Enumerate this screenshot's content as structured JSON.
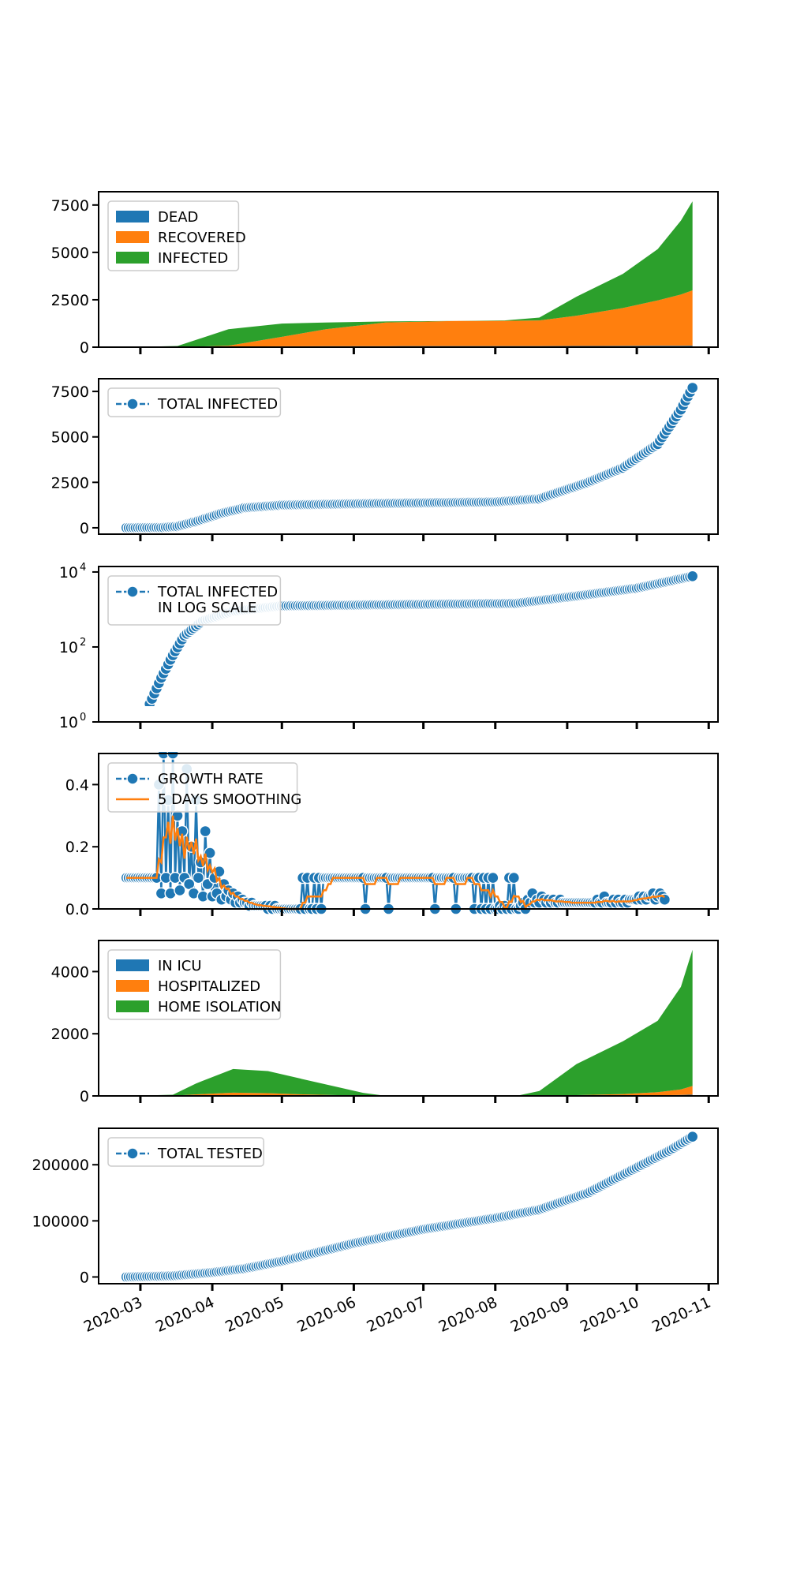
{
  "colors": {
    "blue": "#1f77b4",
    "orange": "#ff7f0e",
    "green": "#2ca02c",
    "axis": "#000000"
  },
  "chart_data": [
    {
      "type": "area",
      "stacked": true,
      "x": [
        "2020-02-24",
        "2020-03-17",
        "2020-04-08",
        "2020-05-01",
        "2020-05-20",
        "2020-06-15",
        "2020-07-15",
        "2020-08-05",
        "2020-08-20",
        "2020-09-05",
        "2020-09-25",
        "2020-10-10",
        "2020-10-20",
        "2020-10-25"
      ],
      "series": [
        {
          "name": "DEAD",
          "color": "#1f77b4",
          "values": [
            0,
            2,
            30,
            45,
            50,
            55,
            60,
            60,
            60,
            62,
            66,
            70,
            75,
            78
          ]
        },
        {
          "name": "RECOVERED",
          "color": "#ff7f0e",
          "values": [
            0,
            0,
            50,
            500,
            900,
            1250,
            1320,
            1330,
            1350,
            1600,
            2000,
            2400,
            2700,
            2920
          ]
        },
        {
          "name": "INFECTED",
          "color": "#2ca02c",
          "values": [
            0,
            60,
            870,
            700,
            350,
            50,
            5,
            20,
            150,
            1000,
            1800,
            2700,
            3900,
            4700
          ]
        }
      ],
      "yticks": [
        "0",
        "2500",
        "5000",
        "7500"
      ],
      "ylim": [
        0,
        8200
      ],
      "legend": "upper-left"
    },
    {
      "type": "line",
      "marker": "circle",
      "series": [
        {
          "name": "TOTAL INFECTED",
          "color": "#1f77b4"
        }
      ],
      "points": [
        [
          "2020-02-24",
          1
        ],
        [
          "2020-03-10",
          10
        ],
        [
          "2020-03-17",
          80
        ],
        [
          "2020-03-25",
          350
        ],
        [
          "2020-04-05",
          800
        ],
        [
          "2020-04-15",
          1100
        ],
        [
          "2020-05-01",
          1250
        ],
        [
          "2020-06-01",
          1320
        ],
        [
          "2020-07-01",
          1370
        ],
        [
          "2020-08-01",
          1420
        ],
        [
          "2020-08-20",
          1600
        ],
        [
          "2020-09-10",
          2500
        ],
        [
          "2020-09-25",
          3300
        ],
        [
          "2020-10-10",
          4600
        ],
        [
          "2020-10-20",
          6500
        ],
        [
          "2020-10-25",
          7700
        ]
      ],
      "yticks": [
        "0",
        "2500",
        "5000",
        "7500"
      ],
      "ylim": [
        -350,
        8200
      ],
      "legend": "upper-left"
    },
    {
      "type": "line",
      "marker": "circle",
      "yscale": "log",
      "series": [
        {
          "name_lines": [
            "TOTAL INFECTED",
            "IN LOG SCALE"
          ],
          "color": "#1f77b4"
        }
      ],
      "points": [
        [
          "2020-03-02",
          1
        ],
        [
          "2020-03-05",
          3
        ],
        [
          "2020-03-10",
          15
        ],
        [
          "2020-03-15",
          60
        ],
        [
          "2020-03-20",
          200
        ],
        [
          "2020-03-28",
          500
        ],
        [
          "2020-04-10",
          900
        ],
        [
          "2020-05-01",
          1250
        ],
        [
          "2020-07-01",
          1370
        ],
        [
          "2020-08-10",
          1450
        ],
        [
          "2020-09-10",
          2500
        ],
        [
          "2020-10-01",
          3700
        ],
        [
          "2020-10-25",
          7700
        ]
      ],
      "yticks": [
        {
          "base": "10",
          "exp": "0"
        },
        {
          "base": "10",
          "exp": "2"
        },
        {
          "base": "10",
          "exp": "4"
        }
      ],
      "ylim": [
        1,
        14000
      ],
      "legend": "upper-left"
    },
    {
      "type": "line",
      "series": [
        {
          "name": "GROWTH RATE",
          "color": "#1f77b4",
          "marker": "circle",
          "values": [
            0.1,
            0.1,
            0.1,
            0.1,
            0.1,
            0.1,
            0.1,
            0.1,
            0.1,
            0.1,
            0.1,
            0.1,
            0.1,
            0.1,
            0.4,
            0.05,
            0.5,
            0.1,
            0.35,
            0.05,
            0.5,
            0.1,
            0.3,
            0.06,
            0.25,
            0.1,
            0.45,
            0.08,
            0.2,
            0.05,
            0.35,
            0.1,
            0.15,
            0.04,
            0.25,
            0.08,
            0.18,
            0.04,
            0.1,
            0.05,
            0.12,
            0.03,
            0.08,
            0.04,
            0.06,
            0.03,
            0.05,
            0.02,
            0.04,
            0.02,
            0.03,
            0.02,
            0.02,
            0.01,
            0.02,
            0.01,
            0.01,
            0.01,
            0.01,
            0.01,
            0.01,
            0.0,
            0.01,
            0.0,
            0.01,
            0.0,
            0.0,
            0.0,
            0.0,
            0.0,
            0.0,
            0.0,
            0.0,
            0.0,
            0.0,
            0.0,
            0.1,
            0.0,
            0.1,
            0.0,
            0.0,
            0.1,
            0.0,
            0.1,
            0.0,
            0.1,
            0.1,
            0.1,
            0.1,
            0.1,
            0.1,
            0.1,
            0.1,
            0.1,
            0.1,
            0.1,
            0.1,
            0.1,
            0.1,
            0.1,
            0.1,
            0.1,
            0.1,
            0.0,
            0.1,
            0.1,
            0.1,
            0.1,
            0.1,
            0.1,
            0.1,
            0.1,
            0.1,
            0.0,
            0.1,
            0.1,
            0.1,
            0.1,
            0.1,
            0.1,
            0.1,
            0.1,
            0.1,
            0.1,
            0.1,
            0.1,
            0.1,
            0.1,
            0.1,
            0.1,
            0.1,
            0.1,
            0.1,
            0.0,
            0.1,
            0.1,
            0.1,
            0.1,
            0.1,
            0.1,
            0.1,
            0.1,
            0.0,
            0.1,
            0.1,
            0.1,
            0.1,
            0.1,
            0.1,
            0.1,
            0.0,
            0.1,
            0.1,
            0.0,
            0.1,
            0.0,
            0.1,
            0.0,
            0.1,
            0.0,
            0.0,
            0.01,
            0.0,
            0.01,
            0.0,
            0.1,
            0.0,
            0.1,
            0.0,
            0.0,
            0.01,
            0.02,
            0.0,
            0.03,
            0.02,
            0.05,
            0.02,
            0.03,
            0.02,
            0.04,
            0.03,
            0.02,
            0.03,
            0.02,
            0.03,
            0.02,
            0.02,
            0.03,
            0.02,
            0.02,
            0.02,
            0.02,
            0.02,
            0.02,
            0.02,
            0.02,
            0.02,
            0.02,
            0.02,
            0.02,
            0.02,
            0.02,
            0.02,
            0.03,
            0.02,
            0.02,
            0.04,
            0.02,
            0.02,
            0.02,
            0.03,
            0.02,
            0.03,
            0.02,
            0.02,
            0.03,
            0.02,
            0.03,
            0.03,
            0.03,
            0.03,
            0.04,
            0.03,
            0.04,
            0.03,
            0.04,
            0.04,
            0.05,
            0.03,
            0.04,
            0.05,
            0.04,
            0.03
          ]
        },
        {
          "name": "5 DAYS SMOOTHING",
          "color": "#ff7f0e",
          "values": []
        }
      ],
      "yticks": [
        "0.0",
        "0.2",
        "0.4"
      ],
      "ylim": [
        0,
        0.5
      ],
      "legend": "upper-left"
    },
    {
      "type": "area",
      "stacked": true,
      "x": [
        "2020-02-24",
        "2020-03-15",
        "2020-03-25",
        "2020-04-10",
        "2020-04-25",
        "2020-05-10",
        "2020-05-25",
        "2020-06-05",
        "2020-06-15",
        "2020-08-10",
        "2020-08-20",
        "2020-09-05",
        "2020-09-25",
        "2020-10-10",
        "2020-10-20",
        "2020-10-25"
      ],
      "series": [
        {
          "name": "IN ICU",
          "color": "#1f77b4",
          "values": [
            0,
            2,
            10,
            25,
            20,
            10,
            5,
            2,
            0,
            0,
            2,
            5,
            10,
            20,
            30,
            40
          ]
        },
        {
          "name": "HOSPITALIZED",
          "color": "#ff7f0e",
          "values": [
            0,
            5,
            40,
            80,
            70,
            40,
            20,
            8,
            0,
            0,
            5,
            20,
            50,
            100,
            180,
            280
          ]
        },
        {
          "name": "HOME ISOLATION",
          "color": "#2ca02c",
          "values": [
            0,
            30,
            350,
            760,
            710,
            490,
            260,
            90,
            0,
            0,
            150,
            1000,
            1700,
            2300,
            3300,
            4380
          ]
        }
      ],
      "yticks": [
        "0",
        "2000",
        "4000"
      ],
      "ylim": [
        0,
        5000
      ],
      "legend": "upper-left"
    },
    {
      "type": "line",
      "marker": "circle",
      "series": [
        {
          "name": "TOTAL TESTED",
          "color": "#1f77b4"
        }
      ],
      "points": [
        [
          "2020-02-24",
          0
        ],
        [
          "2020-03-15",
          2000
        ],
        [
          "2020-04-01",
          8000
        ],
        [
          "2020-04-15",
          15000
        ],
        [
          "2020-05-01",
          28000
        ],
        [
          "2020-06-01",
          60000
        ],
        [
          "2020-07-01",
          85000
        ],
        [
          "2020-08-01",
          105000
        ],
        [
          "2020-08-20",
          120000
        ],
        [
          "2020-09-10",
          150000
        ],
        [
          "2020-10-01",
          195000
        ],
        [
          "2020-10-15",
          225000
        ],
        [
          "2020-10-25",
          250000
        ]
      ],
      "yticks": [
        "0",
        "100000",
        "200000"
      ],
      "ylim": [
        -12000,
        265000
      ],
      "legend": "upper-left"
    }
  ],
  "x_axis": {
    "ticks": [
      "2020-03-01",
      "2020-04-01",
      "2020-05-01",
      "2020-06-01",
      "2020-07-01",
      "2020-08-01",
      "2020-09-01",
      "2020-10-01",
      "2020-11-01"
    ],
    "labels": [
      "2020-03",
      "2020-04",
      "2020-05",
      "2020-06",
      "2020-07",
      "2020-08",
      "2020-09",
      "2020-10",
      "2020-11"
    ],
    "xlim": [
      "2020-02-12",
      "2020-11-05"
    ]
  }
}
